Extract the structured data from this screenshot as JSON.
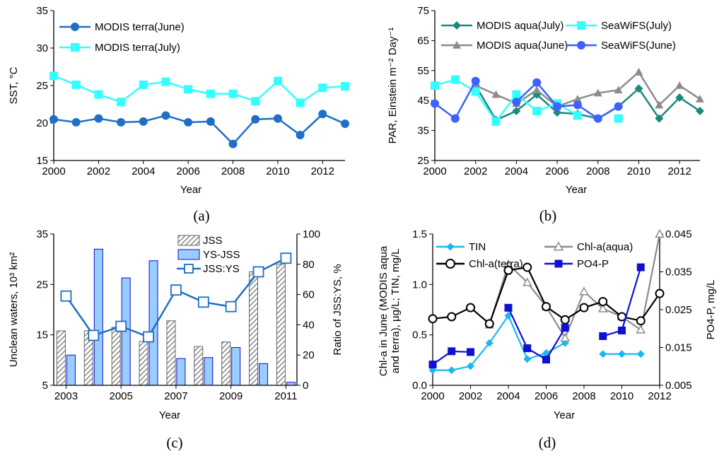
{
  "chart_data": [
    {
      "panel": "a",
      "type": "line",
      "caption": "(a)",
      "xlabel": "Year",
      "ylabel": "SST, °C",
      "xlim": [
        2000,
        2013
      ],
      "ylim": [
        15,
        35
      ],
      "xticks": [
        2000,
        2002,
        2004,
        2006,
        2008,
        2010,
        2012
      ],
      "yticks": [
        15,
        20,
        25,
        30,
        35
      ],
      "legend": "top-left",
      "series": [
        {
          "name": "MODIS terra(June)",
          "color": "#1f6fc5",
          "marker": "circle",
          "x": [
            2000,
            2001,
            2002,
            2003,
            2004,
            2005,
            2006,
            2007,
            2008,
            2009,
            2010,
            2011,
            2012,
            2013
          ],
          "y": [
            20.5,
            20.1,
            20.6,
            20.1,
            20.2,
            21.0,
            20.1,
            20.2,
            17.2,
            20.5,
            20.6,
            18.4,
            21.2,
            19.9
          ]
        },
        {
          "name": "MODIS terra(July)",
          "color": "#33ffff",
          "marker": "square",
          "x": [
            2000,
            2001,
            2002,
            2003,
            2004,
            2005,
            2006,
            2007,
            2008,
            2009,
            2010,
            2011,
            2012,
            2013
          ],
          "y": [
            26.3,
            25.1,
            23.8,
            22.8,
            25.1,
            25.5,
            24.5,
            23.9,
            23.9,
            22.9,
            25.6,
            22.7,
            24.7,
            24.9
          ]
        }
      ]
    },
    {
      "panel": "b",
      "type": "line",
      "caption": "(b)",
      "xlabel": "Year",
      "ylabel": "PAR, Einstein m⁻² Day⁻¹",
      "xlim": [
        2000,
        2013
      ],
      "ylim": [
        25,
        75
      ],
      "xticks": [
        2000,
        2002,
        2004,
        2006,
        2008,
        2010,
        2012
      ],
      "yticks": [
        25,
        35,
        45,
        55,
        65,
        75
      ],
      "legend": "top",
      "series": [
        {
          "name": "MODIS aqua(July)",
          "color": "#1a8a7e",
          "marker": "diamond",
          "x": [
            2002,
            2003,
            2004,
            2005,
            2006,
            2007,
            2008,
            2009,
            2010,
            2011,
            2012,
            2013
          ],
          "y": [
            50.0,
            38.5,
            41.5,
            47.0,
            41.0,
            40.5,
            39.0,
            43.0,
            49.0,
            39.0,
            46.0,
            41.5
          ]
        },
        {
          "name": "MODIS aqua(June)",
          "color": "#8c8c8c",
          "marker": "triangle",
          "x": [
            2002,
            2003,
            2004,
            2005,
            2006,
            2007,
            2008,
            2009,
            2010,
            2011,
            2012,
            2013
          ],
          "y": [
            50.0,
            47.0,
            44.0,
            48.5,
            43.0,
            45.5,
            47.5,
            48.5,
            54.5,
            43.5,
            50.0,
            45.5
          ]
        },
        {
          "name": "SeaWiFS(July)",
          "color": "#33ffff",
          "marker": "square",
          "x": [
            2000,
            2001,
            2002,
            2003,
            2004,
            2005,
            2006,
            2007,
            2008,
            2009
          ],
          "y": [
            50.0,
            52.0,
            48.0,
            38.0,
            47.0,
            41.5,
            44.0,
            40.0,
            null,
            39.0
          ]
        },
        {
          "name": "SeaWiFS(June)",
          "color": "#4060ff",
          "marker": "circle",
          "x": [
            2000,
            2001,
            2002,
            2003,
            2004,
            2005,
            2006,
            2007,
            2008,
            2009
          ],
          "y": [
            44.0,
            39.0,
            51.5,
            null,
            44.5,
            51.0,
            43.0,
            43.5,
            39.0,
            43.0
          ]
        }
      ]
    },
    {
      "panel": "c",
      "type": "bar",
      "caption": "(c)",
      "xlabel": "Year",
      "ylabel": "Unclean waters, 10³ km²",
      "ylabel2": "Ratio of JSS:YS, %",
      "categories": [
        2003,
        2004,
        2005,
        2006,
        2007,
        2008,
        2009,
        2010,
        2011
      ],
      "xticks": [
        2003,
        2005,
        2007,
        2009,
        2011
      ],
      "ylim": [
        5,
        35
      ],
      "yticks": [
        5,
        15,
        25,
        35
      ],
      "y2lim": [
        0,
        100
      ],
      "y2ticks": [
        0,
        20,
        40,
        60,
        80,
        100
      ],
      "legend": "top-center",
      "series": [
        {
          "name": "JSS",
          "type": "bar",
          "color": "#9e9e9e",
          "hatch": true,
          "values": [
            15.8,
            15.8,
            16.5,
            13.7,
            17.8,
            12.7,
            13.6,
            27.5,
            29.0
          ]
        },
        {
          "name": "YS-JSS",
          "type": "bar",
          "color": "#99ccff",
          "values": [
            11.0,
            32.0,
            26.3,
            29.7,
            10.3,
            10.5,
            12.5,
            9.3,
            5.6
          ]
        },
        {
          "name": "JSS:YS",
          "type": "line",
          "axis": "right",
          "color": "#1f6fc5",
          "marker": "open-square",
          "values": [
            59,
            33,
            39,
            32,
            63,
            55,
            52,
            75,
            84
          ]
        }
      ]
    },
    {
      "panel": "d",
      "type": "line",
      "caption": "(d)",
      "xlabel": "Year",
      "ylabel": "Chl-a in June (MODIS aqua and terra), µg/L; TIN, mg/L",
      "ylabel_lines": [
        "Chl-a in June (MODIS aqua",
        "and terra), µg/L; TIN, mg/L"
      ],
      "ylabel2": "PO4-P, mg/L",
      "xlim": [
        2000,
        2012
      ],
      "ylim": [
        0,
        1.5
      ],
      "yticks": [
        0.0,
        0.5,
        1.0,
        1.5
      ],
      "y2lim": [
        0.005,
        0.045
      ],
      "y2ticks": [
        0.005,
        0.015,
        0.025,
        0.035,
        0.045
      ],
      "xticks": [
        2000,
        2002,
        2004,
        2006,
        2008,
        2010,
        2012
      ],
      "legend": "top",
      "series": [
        {
          "name": "TIN",
          "color": "#1ab8ee",
          "marker": "diamond",
          "axis": "left",
          "x": [
            2000,
            2001,
            2002,
            2003,
            2004,
            2005,
            2006,
            2007,
            2008,
            2009,
            2010,
            2011
          ],
          "y": [
            0.15,
            0.15,
            0.19,
            0.42,
            0.69,
            0.26,
            0.32,
            0.42,
            null,
            0.31,
            0.31,
            0.31
          ]
        },
        {
          "name": "Chl-a(aqua)",
          "color": "#8c8c8c",
          "marker": "open-triangle",
          "axis": "left",
          "x": [
            2003,
            2004,
            2005,
            2006,
            2007,
            2008,
            2009,
            2010,
            2011,
            2012
          ],
          "y": [
            0.6,
            1.2,
            1.02,
            0.78,
            0.47,
            0.93,
            0.76,
            0.68,
            0.55,
            1.5
          ]
        },
        {
          "name": "Chl-a(terra)",
          "color": "#000000",
          "marker": "open-circle",
          "axis": "left",
          "x": [
            2000,
            2001,
            2002,
            2003,
            2004,
            2005,
            2006,
            2007,
            2008,
            2009,
            2010,
            2011,
            2012
          ],
          "y": [
            0.66,
            0.68,
            0.77,
            0.61,
            1.14,
            1.17,
            0.78,
            0.65,
            0.77,
            0.83,
            0.68,
            0.64,
            0.91
          ]
        },
        {
          "name": "PO4-P",
          "color": "#1010d0",
          "marker": "square",
          "axis": "right",
          "x": [
            2000,
            2001,
            2002,
            2003,
            2004,
            2005,
            2006,
            2007,
            2008,
            2009,
            2010,
            2011
          ],
          "y": [
            0.0105,
            0.014,
            0.0138,
            null,
            0.0255,
            0.0148,
            0.0118,
            0.0202,
            null,
            0.018,
            0.0195,
            0.0362
          ]
        }
      ]
    }
  ]
}
